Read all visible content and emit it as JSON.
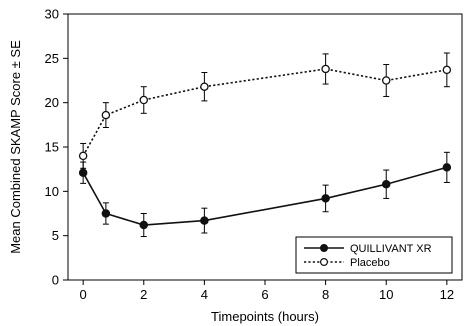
{
  "chart_data": {
    "type": "line",
    "xlabel": "Timepoints (hours)",
    "ylabel": "Mean Combined SKAMP Score ± SE",
    "xlim": [
      -0.5,
      12.5
    ],
    "ylim": [
      0,
      30
    ],
    "xticks": [
      0,
      2,
      4,
      6,
      8,
      10,
      12
    ],
    "yticks": [
      0,
      5,
      10,
      15,
      20,
      25,
      30
    ],
    "grid": false,
    "legend_position": "bottom-right",
    "series": [
      {
        "name": "QUILLIVANT XR",
        "marker": "filled-circle",
        "line_style": "solid",
        "color": "#111111",
        "x": [
          0,
          0.75,
          2,
          4,
          8,
          10,
          12
        ],
        "y": [
          12.1,
          7.5,
          6.2,
          6.7,
          9.2,
          10.8,
          12.7
        ],
        "se": [
          1.2,
          1.2,
          1.3,
          1.4,
          1.5,
          1.6,
          1.7
        ]
      },
      {
        "name": "Placebo",
        "marker": "open-circle",
        "line_style": "dotted",
        "color": "#111111",
        "x": [
          0,
          0.75,
          2,
          4,
          8,
          10,
          12
        ],
        "y": [
          14.0,
          18.6,
          20.3,
          21.8,
          23.8,
          22.5,
          23.7
        ],
        "se": [
          1.4,
          1.4,
          1.5,
          1.6,
          1.7,
          1.8,
          1.9
        ]
      }
    ]
  }
}
